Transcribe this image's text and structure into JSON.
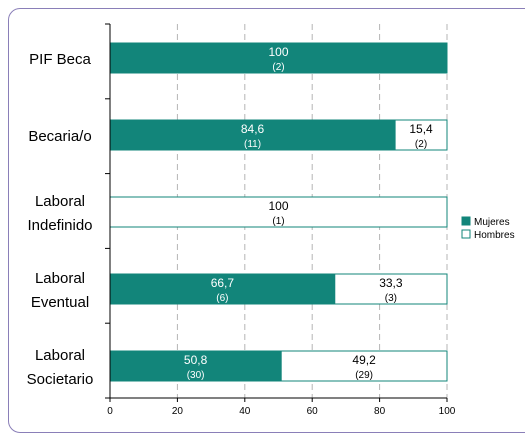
{
  "chart_data": {
    "type": "bar",
    "stacked": true,
    "orientation": "horizontal",
    "categories": [
      [
        "PIF Beca"
      ],
      [
        "Becaria/o"
      ],
      [
        "Laboral",
        "Indefinido"
      ],
      [
        "Laboral",
        "Eventual"
      ],
      [
        "Laboral",
        "Societario"
      ]
    ],
    "series": [
      {
        "name": "Mujeres",
        "color": "#12857a",
        "values": [
          100,
          84.6,
          0,
          66.7,
          50.8
        ],
        "value_labels": [
          "100",
          "84,6",
          "",
          "66,7",
          "50,8"
        ],
        "count_labels": [
          "(2)",
          "(11)",
          "",
          "(6)",
          "(30)"
        ]
      },
      {
        "name": "Hombres",
        "color": "#ffffff",
        "values": [
          0,
          15.4,
          100,
          33.3,
          49.2
        ],
        "value_labels": [
          "",
          "15,4",
          "100",
          "33,3",
          "49,2"
        ],
        "count_labels": [
          "",
          "(2)",
          "(1)",
          "(3)",
          "(29)"
        ]
      }
    ],
    "xlim": [
      0,
      100
    ],
    "xticks": [
      "0",
      "20",
      "40",
      "60",
      "80",
      "100"
    ],
    "grid": "vertical-dashed",
    "legend": "right"
  }
}
